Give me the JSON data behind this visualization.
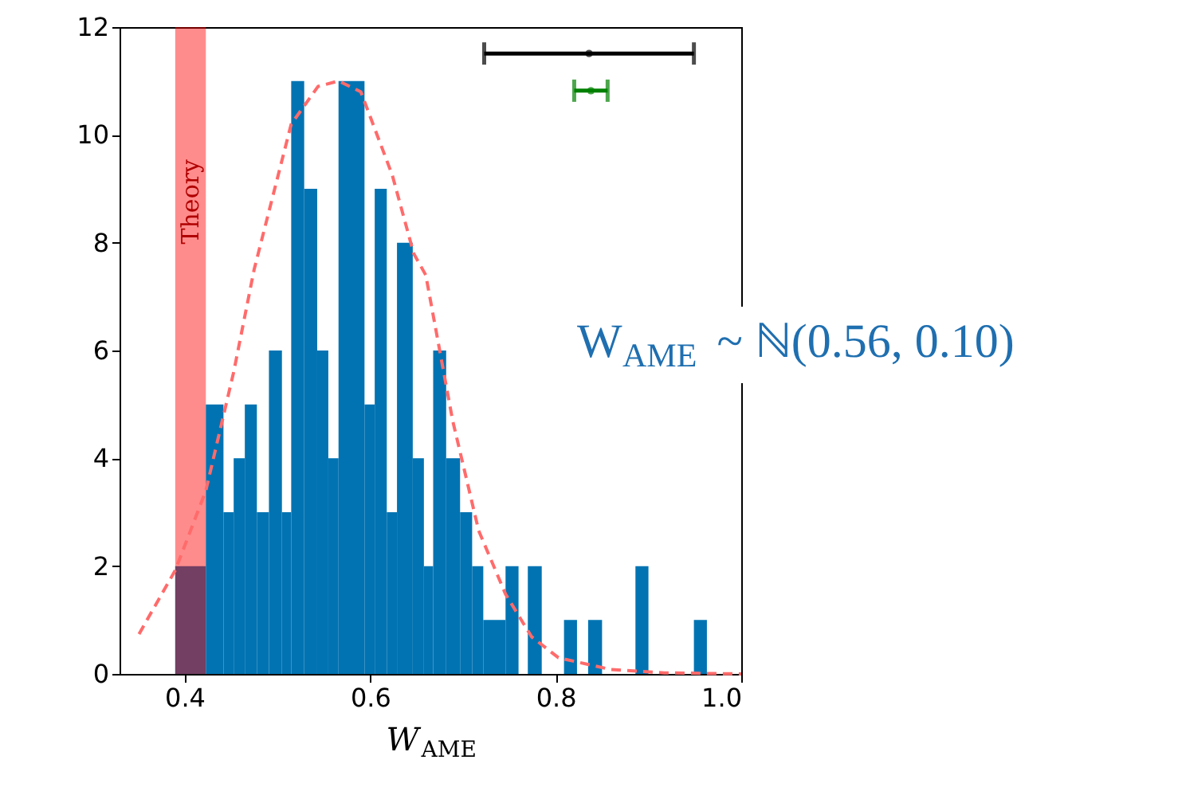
{
  "chart_data": {
    "type": "histogram",
    "bins": [
      0.39,
      0.423,
      0.442,
      0.453,
      0.465,
      0.478,
      0.491,
      0.505,
      0.515,
      0.529,
      0.543,
      0.555,
      0.566,
      0.594,
      0.605,
      0.618,
      0.629,
      0.646,
      0.658,
      0.668,
      0.682,
      0.697,
      0.71,
      0.722,
      0.746,
      0.76,
      0.77,
      0.785,
      0.809,
      0.823,
      0.835,
      0.85,
      0.886,
      0.9,
      0.949,
      0.963
    ],
    "values": [
      2,
      5,
      3,
      4,
      5,
      3,
      6,
      3,
      11,
      9,
      6,
      4,
      11,
      5,
      9,
      3,
      8,
      4,
      2,
      6,
      4,
      3,
      2,
      1,
      2,
      0,
      2,
      0,
      1,
      0,
      1,
      0,
      2,
      0,
      1
    ],
    "color": "#0173b2",
    "xlim": [
      0.33,
      1.0
    ],
    "ylim": [
      0,
      12
    ],
    "xticks": [
      0.4,
      0.6,
      0.8,
      {
        "value": 1.0,
        "label": "1.0"
      }
    ],
    "yticks": [
      0,
      2,
      4,
      6,
      8,
      10,
      12
    ],
    "xlabel": "W$_{AME}$",
    "grid": false,
    "annotations": [
      "W$_{AME}$ ~ ℕ(0.56, 0.10)"
    ],
    "bands": [
      {
        "axis": "x",
        "from": 0.39,
        "to": 0.423,
        "label": "Theory",
        "color": "#ff0000"
      }
    ],
    "series": [
      {
        "type": "line",
        "line_style": "dashed",
        "color": "#ff6b6b",
        "x": [
          0.351,
          0.39,
          0.423,
          0.453,
          0.475,
          0.515,
          0.544,
          0.566,
          0.59,
          0.624,
          0.647,
          0.66,
          0.689,
          0.717,
          0.746,
          0.774,
          0.803,
          0.86,
          0.917,
          1.0
        ],
        "values": [
          0.74,
          1.92,
          3.4,
          5.6,
          7.5,
          10.2,
          10.9,
          11,
          10.8,
          9.25,
          7.8,
          7.4,
          4.7,
          2.66,
          1.48,
          0.69,
          0.3,
          0.08,
          0.02,
          0
        ]
      },
      {
        "type": "scatter",
        "marker": "circle",
        "color": "#000000",
        "x": [
          0.836
        ],
        "values": [
          11.51
        ],
        "xerrors": [
          [
            0.723,
            0.949
          ]
        ]
      },
      {
        "type": "scatter",
        "marker": "circle",
        "color": "#008000",
        "x": [
          0.838
        ],
        "values": [
          10.82
        ],
        "xerrors": [
          [
            0.82,
            0.856
          ]
        ]
      }
    ]
  }
}
